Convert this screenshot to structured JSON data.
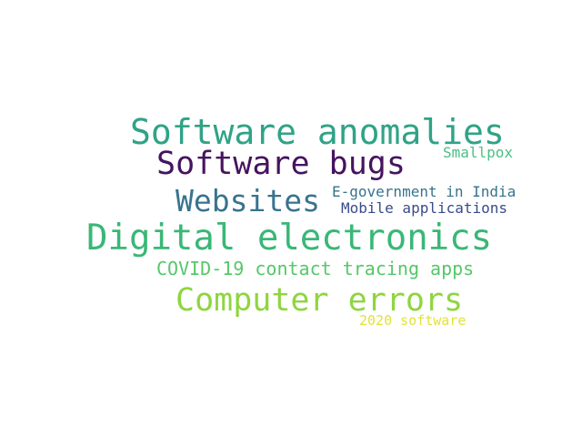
{
  "words": [
    {
      "id": "w-software-anomalies",
      "text": "Software anomalies",
      "color": "#2fa387"
    },
    {
      "id": "w-software-bugs",
      "text": "Software bugs",
      "color": "#46135f"
    },
    {
      "id": "w-smallpox",
      "text": "Smallpox",
      "color": "#4cc083"
    },
    {
      "id": "w-websites",
      "text": "Websites",
      "color": "#38738f"
    },
    {
      "id": "w-egov",
      "text": "E-government in India",
      "color": "#37738e"
    },
    {
      "id": "w-mobile",
      "text": "Mobile applications",
      "color": "#3a4b8a"
    },
    {
      "id": "w-digital",
      "text": "Digital electronics",
      "color": "#3ab777"
    },
    {
      "id": "w-covid",
      "text": "COVID-19 contact tracing apps",
      "color": "#56c76a"
    },
    {
      "id": "w-computer-errors",
      "text": "Computer errors",
      "color": "#8fd540"
    },
    {
      "id": "w-2020",
      "text": "2020 software",
      "color": "#e2e23a"
    }
  ]
}
